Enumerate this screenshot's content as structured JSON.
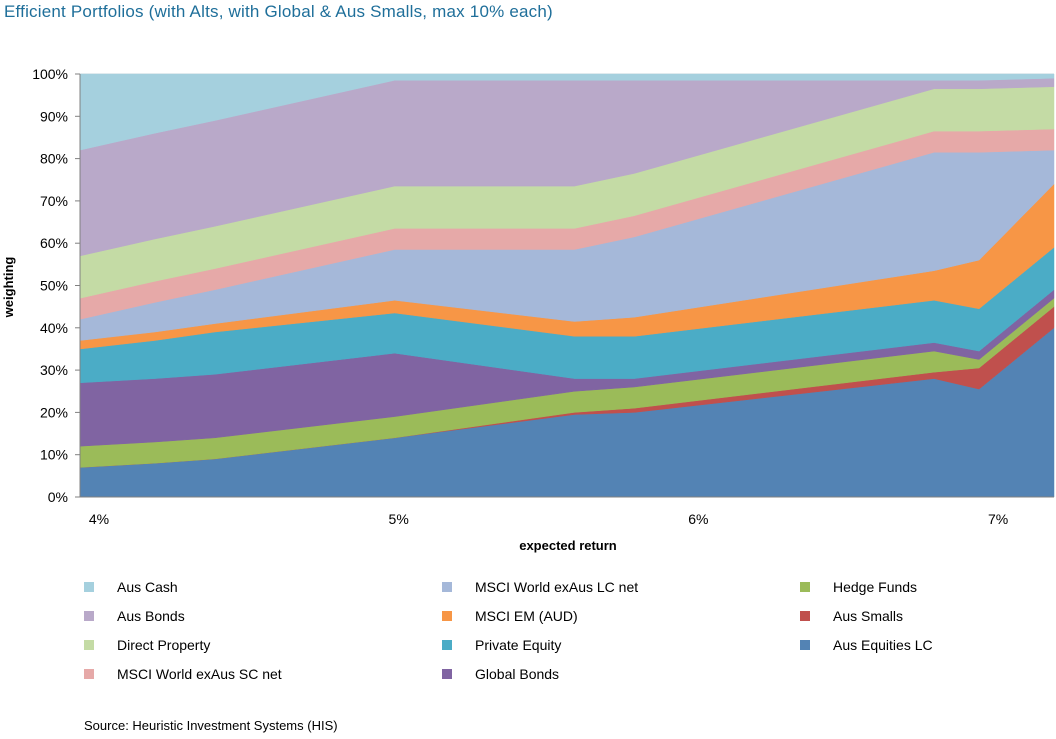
{
  "chart_data": {
    "type": "area",
    "stacked": true,
    "title": "Efficient Portfolios (with Alts, with Global & Aus Smalls, max 10% each)",
    "xlabel": "expected return",
    "ylabel": "weighting",
    "ylim": [
      0,
      100
    ],
    "xlim": [
      3.95,
      7.2
    ],
    "y_ticks": [
      0,
      10,
      20,
      30,
      40,
      50,
      60,
      70,
      80,
      90,
      100
    ],
    "y_tick_labels": [
      "0%",
      "10%",
      "20%",
      "30%",
      "40%",
      "50%",
      "60%",
      "70%",
      "80%",
      "90%",
      "100%"
    ],
    "x_ticks": [
      4,
      5,
      6,
      7
    ],
    "x_tick_labels": [
      "4%",
      "5%",
      "6%",
      "7%"
    ],
    "x": [
      3.95,
      4.2,
      4.4,
      5.0,
      5.6,
      5.8,
      6.8,
      6.95,
      7.2
    ],
    "series": [
      {
        "name": "Aus Equities LC",
        "color": "#5383b4",
        "values": [
          7,
          8,
          9,
          14,
          19.5,
          20,
          28,
          25.5,
          40
        ]
      },
      {
        "name": "Aus Smalls",
        "color": "#c0504d",
        "values": [
          0,
          0,
          0,
          0,
          0.5,
          1,
          1.5,
          5,
          5
        ]
      },
      {
        "name": "Hedge Funds",
        "color": "#9bbb59",
        "values": [
          5,
          5,
          5,
          5,
          5,
          5,
          5,
          2,
          2
        ]
      },
      {
        "name": "Global Bonds",
        "color": "#8064a2",
        "values": [
          15,
          15,
          15,
          15,
          3,
          2,
          2,
          2,
          2
        ]
      },
      {
        "name": "Private Equity",
        "color": "#4bacc6",
        "values": [
          8,
          9,
          10,
          9.5,
          10,
          10,
          10,
          10,
          10
        ]
      },
      {
        "name": "MSCI EM (AUD)",
        "color": "#f79646",
        "values": [
          2,
          2,
          2,
          3,
          3.5,
          4.5,
          7,
          11.5,
          15
        ]
      },
      {
        "name": "MSCI World exAus LC net",
        "color": "#a5b8d9",
        "values": [
          5,
          7,
          8,
          12,
          17,
          19,
          28,
          25.5,
          8
        ]
      },
      {
        "name": "MSCI World exAus SC net",
        "color": "#e6a9a8",
        "values": [
          5,
          5,
          5,
          5,
          5,
          5,
          5,
          5,
          5
        ]
      },
      {
        "name": "Direct Property",
        "color": "#c4dba5",
        "values": [
          10,
          10,
          10,
          10,
          10,
          10,
          10,
          10,
          10
        ]
      },
      {
        "name": "Aus Bonds",
        "color": "#b9a9c9",
        "values": [
          25,
          25,
          25,
          25,
          25,
          22,
          2,
          2,
          2
        ]
      },
      {
        "name": "Aus Cash",
        "color": "#a5d0de",
        "values": [
          18,
          14,
          11,
          1.5,
          1.5,
          1.5,
          1.5,
          1.5,
          1.5
        ]
      }
    ],
    "legend_order": [
      [
        "Aus Cash",
        "Aus Bonds",
        "Direct Property",
        "MSCI World exAus SC net"
      ],
      [
        "MSCI World exAus LC net",
        "MSCI EM (AUD)",
        "Private Equity",
        "Global Bonds"
      ],
      [
        "Hedge Funds",
        "Aus Smalls",
        "Aus Equities LC"
      ]
    ],
    "legend_position": "bottom"
  },
  "source": "Source: Heuristic Investment Systems (HIS)"
}
